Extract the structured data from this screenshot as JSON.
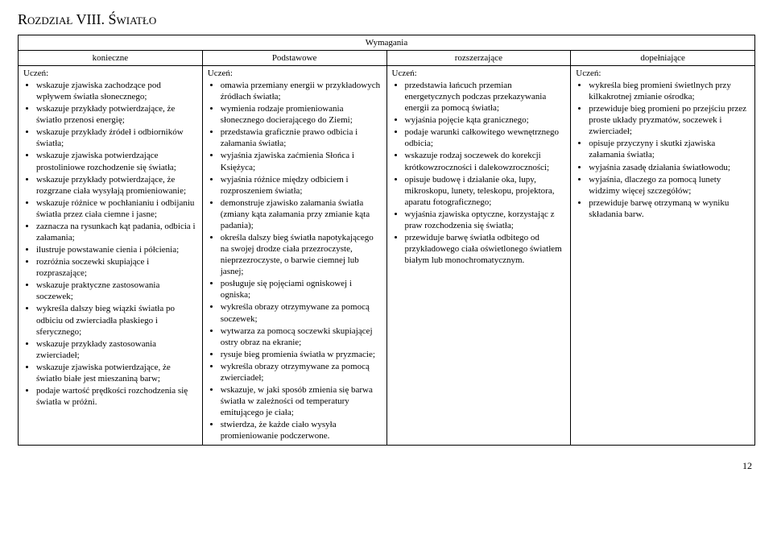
{
  "chapter_title": "Rozdział VIII. Światło",
  "header_center": "Wymagania",
  "student_label": "Uczeń:",
  "columns": {
    "k": "konieczne",
    "p": "Podstawowe",
    "r": "rozszerzające",
    "d": "dopełniające"
  },
  "cells": {
    "k": [
      "wskazuje zjawiska zachodzące pod wpływem światła słonecznego;",
      "wskazuje przykłady potwierdzające, że światło przenosi energię;",
      "wskazuje przykłady źródeł i odbiorników światła;",
      "wskazuje zjawiska potwierdzające prostoliniowe rozchodzenie się światła;",
      "wskazuje przykłady potwierdzające, że rozgrzane ciała wysyłają promieniowanie;",
      "wskazuje różnice w pochłanianiu i odbijaniu światła przez ciała ciemne i jasne;",
      "zaznacza na rysunkach kąt padania, odbicia i załamania;",
      "ilustruje powstawanie cienia i półcienia;",
      "rozróżnia soczewki skupiające i rozpraszające;",
      "wskazuje praktyczne zastosowania soczewek;",
      "wykreśla dalszy bieg wiązki światła po odbiciu od zwierciadła płaskiego i sferycznego;",
      "wskazuje przykłady zastosowania zwierciadeł;",
      "wskazuje zjawiska potwierdzające, że światło białe jest mieszaniną barw;",
      "podaje wartość prędkości rozchodzenia się światła w próżni."
    ],
    "p": [
      "omawia przemiany energii w przykładowych źródłach światła;",
      "wymienia rodzaje promieniowania słonecznego docierającego do Ziemi;",
      "przedstawia graficznie prawo odbicia i załamania światła;",
      "wyjaśnia zjawiska zaćmienia Słońca i Księżyca;",
      "wyjaśnia różnice między odbiciem i rozproszeniem światła;",
      "demonstruje zjawisko załamania światła (zmiany kąta załamania przy zmianie kąta padania);",
      "określa dalszy bieg światła napotykającego na swojej drodze ciała przezroczyste, nieprzezroczyste, o barwie ciemnej lub jasnej;",
      "posługuje się pojęciami ogniskowej i ogniska;",
      "wykreśla obrazy otrzymywane za pomocą soczewek;",
      "wytwarza za pomocą soczewki skupiającej ostry obraz na ekranie;",
      "rysuje bieg promienia światła w pryzmacie;",
      "wykreśla obrazy otrzymywane za pomocą zwierciadeł;",
      "wskazuje, w jaki sposób zmienia się barwa światła w zależności od temperatury emitującego je ciała;",
      "stwierdza, że każde ciało wysyła promieniowanie podczerwone."
    ],
    "r": [
      "przedstawia łańcuch przemian energetycznych podczas przekazywania energii za pomocą światła;",
      "wyjaśnia pojęcie kąta granicznego;",
      "podaje warunki całkowitego wewnętrznego odbicia;",
      "wskazuje rodzaj soczewek do korekcji krótkowzroczności i dalekowzroczności;",
      "opisuje budowę i działanie oka, lupy, mikroskopu, lunety, teleskopu, projektora, aparatu fotograficznego;",
      "wyjaśnia zjawiska optyczne, korzystając z praw rozchodzenia się światła;",
      "przewiduje barwę światła odbitego od przykładowego ciała oświetlonego światłem białym lub monochromatycznym."
    ],
    "d": [
      "wykreśla bieg promieni świetlnych przy kilkakrotnej zmianie ośrodka;",
      "przewiduje bieg promieni po przejściu przez proste układy pryzmatów, soczewek i zwierciadeł;",
      "opisuje przyczyny i skutki zjawiska załamania światła;",
      "wyjaśnia zasadę działania światłowodu;",
      "wyjaśnia, dlaczego za pomocą lunety widzimy więcej szczegółów;",
      "przewiduje barwę otrzymaną w wyniku składania barw."
    ]
  },
  "page_number": "12"
}
